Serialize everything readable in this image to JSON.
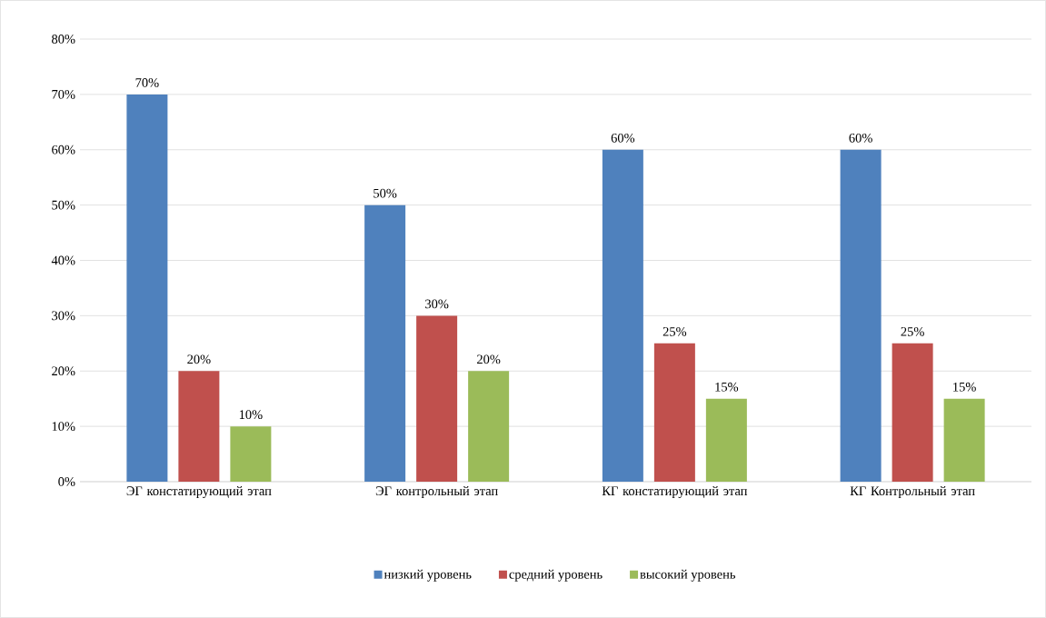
{
  "chart_data": {
    "type": "bar",
    "categories": [
      "ЭГ констатирующий этап",
      "ЭГ контрольный этап",
      "КГ констатирующий этап",
      "КГ Контрольный этап"
    ],
    "series": [
      {
        "name": "низкий уровень",
        "color": "#4f81bd",
        "values": [
          70,
          50,
          60,
          60
        ],
        "value_labels": [
          "70%",
          "50%",
          "60%",
          "60%"
        ]
      },
      {
        "name": "средний уровень",
        "color": "#c0504d",
        "values": [
          20,
          30,
          25,
          25
        ],
        "value_labels": [
          "20%",
          "30%",
          "25%",
          "25%"
        ]
      },
      {
        "name": "высокий уровень",
        "color": "#9bbb59",
        "values": [
          10,
          20,
          15,
          15
        ],
        "value_labels": [
          "10%",
          "20%",
          "15%",
          "15%"
        ]
      }
    ],
    "ylim": [
      0,
      80
    ],
    "yticks": [
      {
        "value": 0,
        "label": "0%"
      },
      {
        "value": 10,
        "label": "10%"
      },
      {
        "value": 20,
        "label": "20%"
      },
      {
        "value": 30,
        "label": "30%"
      },
      {
        "value": 40,
        "label": "40%"
      },
      {
        "value": 50,
        "label": "50%"
      },
      {
        "value": 60,
        "label": "60%"
      },
      {
        "value": 70,
        "label": "70%"
      },
      {
        "value": 80,
        "label": "80%"
      }
    ],
    "grid": "y",
    "legend": "bottom"
  }
}
